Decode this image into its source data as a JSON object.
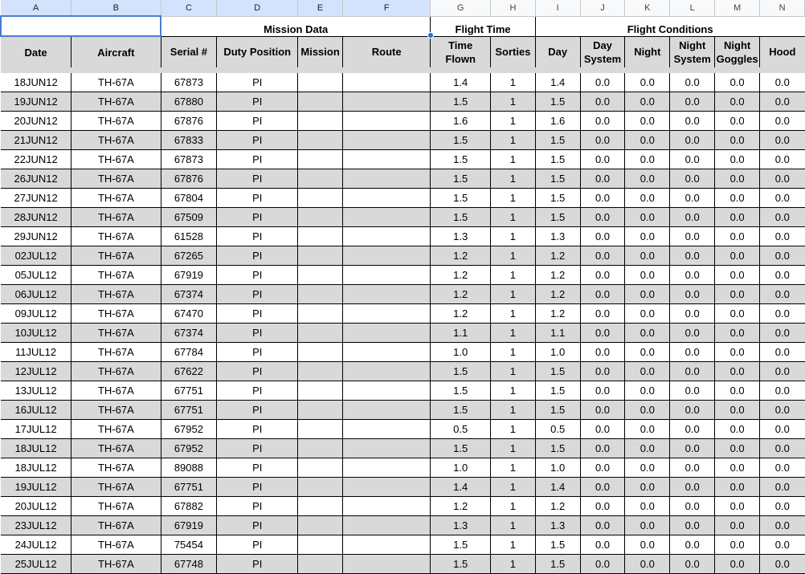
{
  "column_letters": [
    "A",
    "B",
    "C",
    "D",
    "E",
    "F",
    "G",
    "H",
    "I",
    "J",
    "K",
    "L",
    "M",
    "N"
  ],
  "group_headers": {
    "mission_data": "Mission Data",
    "flight_time": "Flight Time",
    "flight_conditions": "Flight Conditions"
  },
  "headers": {
    "date": "Date",
    "aircraft": "Aircraft",
    "serial": "Serial #",
    "duty_position": "Duty Position",
    "mission": "Mission",
    "route": "Route",
    "time_flown_1": "Time",
    "time_flown_2": "Flown",
    "sorties": "Sorties",
    "day": "Day",
    "day_system_1": "Day",
    "day_system_2": "System",
    "night": "Night",
    "night_system_1": "Night",
    "night_system_2": "System",
    "night_goggles_1": "Night",
    "night_goggles_2": "Goggles",
    "hood": "Hood"
  },
  "rows": [
    {
      "date": "18JUN12",
      "aircraft": "TH-67A",
      "serial": "67873",
      "duty": "PI",
      "mission": "",
      "route": "",
      "time": "1.4",
      "sorties": "1",
      "day": "1.4",
      "day_system": "0.0",
      "night": "0.0",
      "night_system": "0.0",
      "night_goggles": "0.0",
      "hood": "0.0"
    },
    {
      "date": "19JUN12",
      "aircraft": "TH-67A",
      "serial": "67880",
      "duty": "PI",
      "mission": "",
      "route": "",
      "time": "1.5",
      "sorties": "1",
      "day": "1.5",
      "day_system": "0.0",
      "night": "0.0",
      "night_system": "0.0",
      "night_goggles": "0.0",
      "hood": "0.0"
    },
    {
      "date": "20JUN12",
      "aircraft": "TH-67A",
      "serial": "67876",
      "duty": "PI",
      "mission": "",
      "route": "",
      "time": "1.6",
      "sorties": "1",
      "day": "1.6",
      "day_system": "0.0",
      "night": "0.0",
      "night_system": "0.0",
      "night_goggles": "0.0",
      "hood": "0.0"
    },
    {
      "date": "21JUN12",
      "aircraft": "TH-67A",
      "serial": "67833",
      "duty": "PI",
      "mission": "",
      "route": "",
      "time": "1.5",
      "sorties": "1",
      "day": "1.5",
      "day_system": "0.0",
      "night": "0.0",
      "night_system": "0.0",
      "night_goggles": "0.0",
      "hood": "0.0"
    },
    {
      "date": "22JUN12",
      "aircraft": "TH-67A",
      "serial": "67873",
      "duty": "PI",
      "mission": "",
      "route": "",
      "time": "1.5",
      "sorties": "1",
      "day": "1.5",
      "day_system": "0.0",
      "night": "0.0",
      "night_system": "0.0",
      "night_goggles": "0.0",
      "hood": "0.0"
    },
    {
      "date": "26JUN12",
      "aircraft": "TH-67A",
      "serial": "67876",
      "duty": "PI",
      "mission": "",
      "route": "",
      "time": "1.5",
      "sorties": "1",
      "day": "1.5",
      "day_system": "0.0",
      "night": "0.0",
      "night_system": "0.0",
      "night_goggles": "0.0",
      "hood": "0.0"
    },
    {
      "date": "27JUN12",
      "aircraft": "TH-67A",
      "serial": "67804",
      "duty": "PI",
      "mission": "",
      "route": "",
      "time": "1.5",
      "sorties": "1",
      "day": "1.5",
      "day_system": "0.0",
      "night": "0.0",
      "night_system": "0.0",
      "night_goggles": "0.0",
      "hood": "0.0"
    },
    {
      "date": "28JUN12",
      "aircraft": "TH-67A",
      "serial": "67509",
      "duty": "PI",
      "mission": "",
      "route": "",
      "time": "1.5",
      "sorties": "1",
      "day": "1.5",
      "day_system": "0.0",
      "night": "0.0",
      "night_system": "0.0",
      "night_goggles": "0.0",
      "hood": "0.0"
    },
    {
      "date": "29JUN12",
      "aircraft": "TH-67A",
      "serial": "61528",
      "duty": "PI",
      "mission": "",
      "route": "",
      "time": "1.3",
      "sorties": "1",
      "day": "1.3",
      "day_system": "0.0",
      "night": "0.0",
      "night_system": "0.0",
      "night_goggles": "0.0",
      "hood": "0.0"
    },
    {
      "date": "02JUL12",
      "aircraft": "TH-67A",
      "serial": "67265",
      "duty": "PI",
      "mission": "",
      "route": "",
      "time": "1.2",
      "sorties": "1",
      "day": "1.2",
      "day_system": "0.0",
      "night": "0.0",
      "night_system": "0.0",
      "night_goggles": "0.0",
      "hood": "0.0"
    },
    {
      "date": "05JUL12",
      "aircraft": "TH-67A",
      "serial": "67919",
      "duty": "PI",
      "mission": "",
      "route": "",
      "time": "1.2",
      "sorties": "1",
      "day": "1.2",
      "day_system": "0.0",
      "night": "0.0",
      "night_system": "0.0",
      "night_goggles": "0.0",
      "hood": "0.0"
    },
    {
      "date": "06JUL12",
      "aircraft": "TH-67A",
      "serial": "67374",
      "duty": "PI",
      "mission": "",
      "route": "",
      "time": "1.2",
      "sorties": "1",
      "day": "1.2",
      "day_system": "0.0",
      "night": "0.0",
      "night_system": "0.0",
      "night_goggles": "0.0",
      "hood": "0.0"
    },
    {
      "date": "09JUL12",
      "aircraft": "TH-67A",
      "serial": "67470",
      "duty": "PI",
      "mission": "",
      "route": "",
      "time": "1.2",
      "sorties": "1",
      "day": "1.2",
      "day_system": "0.0",
      "night": "0.0",
      "night_system": "0.0",
      "night_goggles": "0.0",
      "hood": "0.0"
    },
    {
      "date": "10JUL12",
      "aircraft": "TH-67A",
      "serial": "67374",
      "duty": "PI",
      "mission": "",
      "route": "",
      "time": "1.1",
      "sorties": "1",
      "day": "1.1",
      "day_system": "0.0",
      "night": "0.0",
      "night_system": "0.0",
      "night_goggles": "0.0",
      "hood": "0.0"
    },
    {
      "date": "11JUL12",
      "aircraft": "TH-67A",
      "serial": "67784",
      "duty": "PI",
      "mission": "",
      "route": "",
      "time": "1.0",
      "sorties": "1",
      "day": "1.0",
      "day_system": "0.0",
      "night": "0.0",
      "night_system": "0.0",
      "night_goggles": "0.0",
      "hood": "0.0"
    },
    {
      "date": "12JUL12",
      "aircraft": "TH-67A",
      "serial": "67622",
      "duty": "PI",
      "mission": "",
      "route": "",
      "time": "1.5",
      "sorties": "1",
      "day": "1.5",
      "day_system": "0.0",
      "night": "0.0",
      "night_system": "0.0",
      "night_goggles": "0.0",
      "hood": "0.0"
    },
    {
      "date": "13JUL12",
      "aircraft": "TH-67A",
      "serial": "67751",
      "duty": "PI",
      "mission": "",
      "route": "",
      "time": "1.5",
      "sorties": "1",
      "day": "1.5",
      "day_system": "0.0",
      "night": "0.0",
      "night_system": "0.0",
      "night_goggles": "0.0",
      "hood": "0.0"
    },
    {
      "date": "16JUL12",
      "aircraft": "TH-67A",
      "serial": "67751",
      "duty": "PI",
      "mission": "",
      "route": "",
      "time": "1.5",
      "sorties": "1",
      "day": "1.5",
      "day_system": "0.0",
      "night": "0.0",
      "night_system": "0.0",
      "night_goggles": "0.0",
      "hood": "0.0"
    },
    {
      "date": "17JUL12",
      "aircraft": "TH-67A",
      "serial": "67952",
      "duty": "PI",
      "mission": "",
      "route": "",
      "time": "0.5",
      "sorties": "1",
      "day": "0.5",
      "day_system": "0.0",
      "night": "0.0",
      "night_system": "0.0",
      "night_goggles": "0.0",
      "hood": "0.0"
    },
    {
      "date": "18JUL12",
      "aircraft": "TH-67A",
      "serial": "67952",
      "duty": "PI",
      "mission": "",
      "route": "",
      "time": "1.5",
      "sorties": "1",
      "day": "1.5",
      "day_system": "0.0",
      "night": "0.0",
      "night_system": "0.0",
      "night_goggles": "0.0",
      "hood": "0.0"
    },
    {
      "date": "18JUL12",
      "aircraft": "TH-67A",
      "serial": "89088",
      "duty": "PI",
      "mission": "",
      "route": "",
      "time": "1.0",
      "sorties": "1",
      "day": "1.0",
      "day_system": "0.0",
      "night": "0.0",
      "night_system": "0.0",
      "night_goggles": "0.0",
      "hood": "0.0"
    },
    {
      "date": "19JUL12",
      "aircraft": "TH-67A",
      "serial": "67751",
      "duty": "PI",
      "mission": "",
      "route": "",
      "time": "1.4",
      "sorties": "1",
      "day": "1.4",
      "day_system": "0.0",
      "night": "0.0",
      "night_system": "0.0",
      "night_goggles": "0.0",
      "hood": "0.0"
    },
    {
      "date": "20JUL12",
      "aircraft": "TH-67A",
      "serial": "67882",
      "duty": "PI",
      "mission": "",
      "route": "",
      "time": "1.2",
      "sorties": "1",
      "day": "1.2",
      "day_system": "0.0",
      "night": "0.0",
      "night_system": "0.0",
      "night_goggles": "0.0",
      "hood": "0.0"
    },
    {
      "date": "23JUL12",
      "aircraft": "TH-67A",
      "serial": "67919",
      "duty": "PI",
      "mission": "",
      "route": "",
      "time": "1.3",
      "sorties": "1",
      "day": "1.3",
      "day_system": "0.0",
      "night": "0.0",
      "night_system": "0.0",
      "night_goggles": "0.0",
      "hood": "0.0"
    },
    {
      "date": "24JUL12",
      "aircraft": "TH-67A",
      "serial": "75454",
      "duty": "PI",
      "mission": "",
      "route": "",
      "time": "1.5",
      "sorties": "1",
      "day": "1.5",
      "day_system": "0.0",
      "night": "0.0",
      "night_system": "0.0",
      "night_goggles": "0.0",
      "hood": "0.0"
    },
    {
      "date": "25JUL12",
      "aircraft": "TH-67A",
      "serial": "67748",
      "duty": "PI",
      "mission": "",
      "route": "",
      "time": "1.5",
      "sorties": "1",
      "day": "1.5",
      "day_system": "0.0",
      "night": "0.0",
      "night_system": "0.0",
      "night_goggles": "0.0",
      "hood": "0.0"
    }
  ]
}
